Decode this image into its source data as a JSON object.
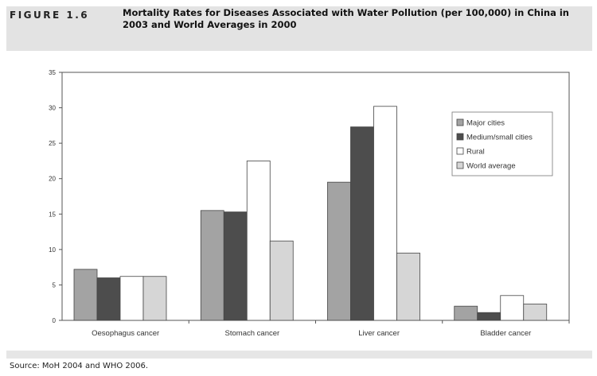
{
  "figure": {
    "label": "FIGURE 1.6",
    "title": "Mortality Rates for Diseases Associated with Water Pollution (per 100,000) in China in 2003 and World Averages in 2000"
  },
  "source": "Source: MoH 2004 and WHO 2006.",
  "chart_data": {
    "type": "bar",
    "title": "Mortality Rates for Diseases Associated with Water Pollution (per 100,000) in China in 2003 and World Averages in 2000",
    "xlabel": "",
    "ylabel": "",
    "ylim": [
      0,
      35
    ],
    "yticks": [
      0,
      5,
      10,
      15,
      20,
      25,
      30,
      35
    ],
    "grid": false,
    "legend_position": "right",
    "categories": [
      "Oesophagus cancer",
      "Stomach cancer",
      "Liver cancer",
      "Bladder cancer"
    ],
    "series": [
      {
        "name": "Major cities",
        "color": "#a3a3a3",
        "values": [
          7.2,
          15.5,
          19.5,
          2.0
        ]
      },
      {
        "name": "Medium/small cities",
        "color": "#4d4d4d",
        "values": [
          6.0,
          15.3,
          27.3,
          1.1
        ]
      },
      {
        "name": "Rural",
        "color": "#ffffff",
        "values": [
          6.2,
          22.5,
          30.2,
          3.5
        ]
      },
      {
        "name": "World average",
        "color": "#d6d6d6",
        "values": [
          6.2,
          11.2,
          9.5,
          2.3
        ]
      }
    ]
  }
}
